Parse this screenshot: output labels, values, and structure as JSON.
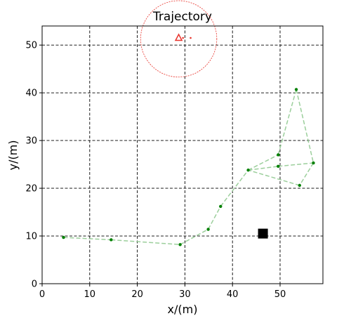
{
  "chart_data": {
    "type": "line",
    "title": "Trajectory",
    "xlabel": "x/(m)",
    "ylabel": "y/(m)",
    "xlim": [
      0,
      59
    ],
    "ylim": [
      0,
      54
    ],
    "xticks": [
      0,
      10,
      20,
      30,
      40,
      50
    ],
    "yticks": [
      0,
      10,
      20,
      30,
      40,
      50
    ],
    "grid": true,
    "series": [
      {
        "kind": "trajectory",
        "color": "#008000",
        "line_color": "#9ccf9c",
        "line_style": "dashed",
        "x": [
          4.5,
          14.5,
          29,
          34.9,
          37.5,
          43.3,
          49.6,
          53.4,
          57,
          54.1,
          43.3,
          49.6,
          57
        ],
        "y": [
          9.7,
          9.2,
          8.2,
          11.4,
          16.2,
          23.8,
          27,
          40.7,
          25.3,
          20.6,
          23.8,
          24.6,
          25.3
        ]
      }
    ],
    "markers": [
      {
        "kind": "square",
        "color": "#000000",
        "x": 46.4,
        "y": 10.5
      },
      {
        "kind": "triangle",
        "color": "#e8322a",
        "x": 28.7,
        "y": 51.5
      },
      {
        "kind": "dot",
        "color": "#e8322a",
        "x": 31.2,
        "y": 51.5
      },
      {
        "kind": "dot",
        "color": "#e8322a",
        "x": 29.6,
        "y": 51.5
      }
    ],
    "circle": {
      "color": "#e8322a",
      "cx": 28.7,
      "cy": 51.3,
      "r": 8
    }
  }
}
